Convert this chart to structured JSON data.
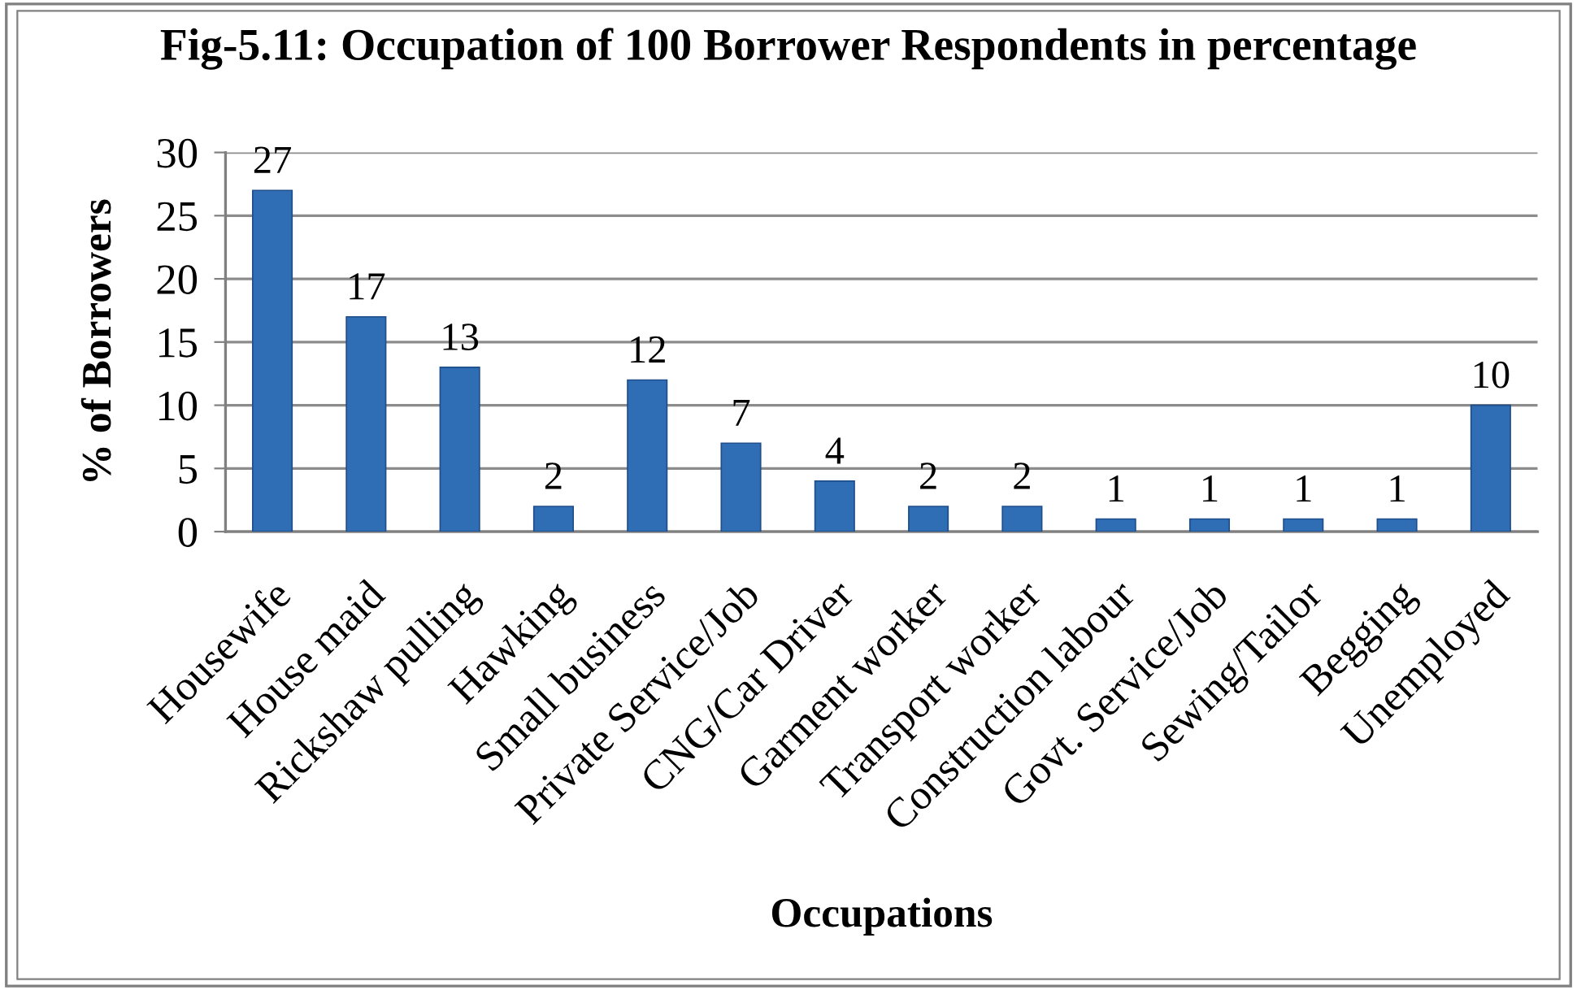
{
  "chart_data": {
    "type": "bar",
    "title": "Fig-5.11: Occupation of 100 Borrower Respondents in percentage",
    "xlabel": "Occupations",
    "ylabel": "% of Borrowers",
    "categories": [
      "Housewife",
      "House maid",
      "Rickshaw pulling",
      "Hawking",
      "Small business",
      "Private Service/Job",
      "CNG/Car Driver",
      "Garment worker",
      "Transport worker",
      "Construction labour",
      "Govt. Service/Job",
      "Sewing/Tailor",
      "Begging",
      "Unemployed"
    ],
    "values": [
      27,
      17,
      13,
      2,
      12,
      7,
      4,
      2,
      2,
      1,
      1,
      1,
      1,
      10
    ],
    "color": "#2f6db5",
    "ylim": [
      0,
      30
    ],
    "yticks": [
      0,
      5,
      10,
      15,
      20,
      25,
      30
    ],
    "grid": "y",
    "data_labels": true,
    "legend": false
  }
}
